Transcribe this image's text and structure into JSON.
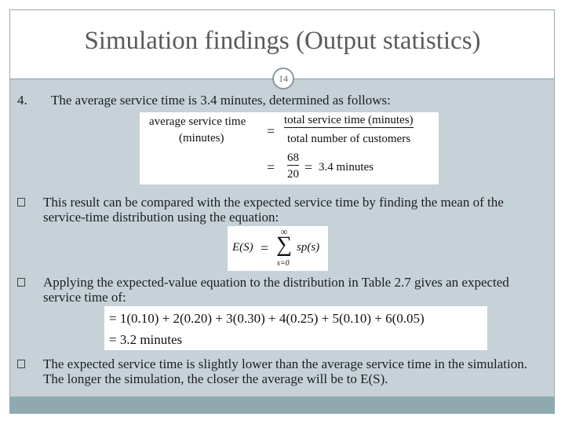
{
  "header": {
    "title": "Simulation findings (Output statistics)",
    "page_number": "14"
  },
  "items": [
    {
      "marker": "4.",
      "text": "The average service time is 3.4 minutes, determined as follows:"
    },
    {
      "text": "This result can be compared with the expected service time by finding the mean of the service-time distribution using the equation:"
    },
    {
      "text": "Applying the expected-value equation to the distribution in Table 2.7 gives an expected service time of:"
    },
    {
      "text": "The expected service time is slightly lower than the average service time in the simulation. The longer the simulation, the closer the average will be to E(S)."
    }
  ],
  "equations": [
    {
      "lhs": [
        "average service time",
        "(minutes)"
      ],
      "equals": "=",
      "numerator": "total service time (minutes)",
      "denominator": "total number of customers",
      "numerator2": "68",
      "denominator2": "20",
      "result": "3.4 minutes"
    },
    {
      "lhs": "E(S)",
      "equals": "=",
      "sum_upper": "∞",
      "sum_symbol": "∑",
      "sum_lower": "s=0",
      "term": "sp(s)"
    },
    {
      "lines": [
        "= 1(0.10) + 2(0.20) + 3(0.30) + 4(0.25) + 5(0.10) + 6(0.05)",
        "= 3.2 minutes"
      ]
    }
  ]
}
